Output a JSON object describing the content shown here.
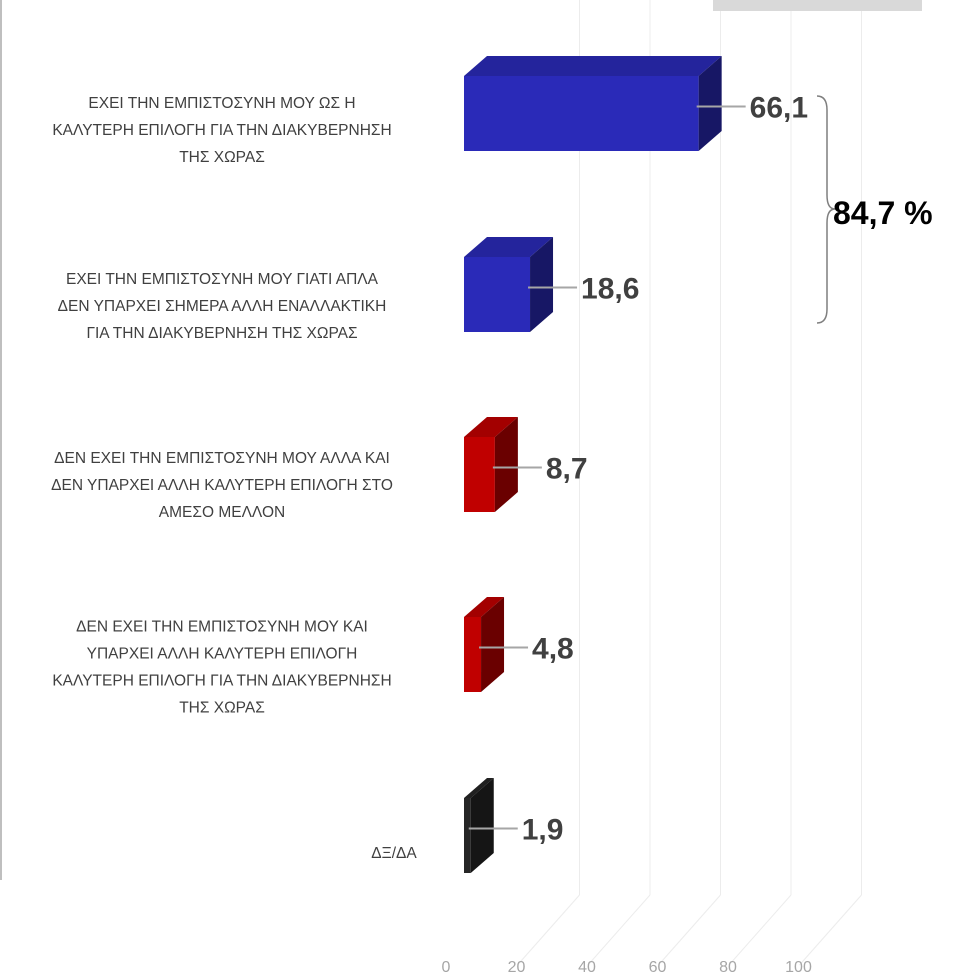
{
  "chart_data": {
    "type": "bar",
    "orientation": "horizontal",
    "style": "3d",
    "categories": [
      [
        "ΕΧΕΙ ΤΗΝ ΕΜΠΙΣΤΟΣΥΝΗ ΜΟΥ ΩΣ Η",
        "ΚΑΛΥΤΕΡΗ ΕΠΙΛΟΓΗ ΓΙΑ ΤΗΝ ΔΙΑΚΥΒΕΡΝΗΣΗ",
        "ΤΗΣ ΧΩΡΑΣ"
      ],
      [
        "ΕΧΕΙ ΤΗΝ ΕΜΠΙΣΤΟΣΥΝΗ ΜΟΥ ΓΙΑΤΙ ΑΠΛΑ",
        "ΔΕΝ ΥΠΑΡΧΕΙ ΣΗΜΕΡΑ ΑΛΛΗ ΕΝΑΛΛΑΚΤΙΚΗ",
        "ΓΙΑ ΤΗΝ ΔΙΑΚΥΒΕΡΝΗΣΗ ΤΗΣ ΧΩΡΑΣ"
      ],
      [
        "ΔΕΝ ΕΧΕΙ ΤΗΝ ΕΜΠΙΣΤΟΣΥΝΗ ΜΟΥ ΑΛΛΑ ΚΑΙ",
        "ΔΕΝ ΥΠΑΡΧΕΙ ΑΛΛΗ ΚΑΛΥΤΕΡΗ ΕΠΙΛΟΓΗ ΣΤΟ",
        "ΑΜΕΣΟ ΜΕΛΛΟΝ"
      ],
      [
        "ΔΕΝ ΕΧΕΙ ΤΗΝ ΕΜΠΙΣΤΟΣΥΝΗ ΜΟΥ ΚΑΙ",
        "ΥΠΑΡΧΕΙ ΑΛΛΗ ΚΑΛΥΤΕΡΗ ΕΠΙΛΟΓΗ",
        "ΚΑΛΥΤΕΡΗ ΕΠΙΛΟΓΗ ΓΙΑ ΤΗΝ ΔΙΑΚΥΒΕΡΝΗΣΗ",
        "ΤΗΣ ΧΩΡΑΣ"
      ],
      [
        "ΔΞ/ΔΑ"
      ]
    ],
    "values": [
      66.1,
      18.6,
      8.7,
      4.8,
      1.9
    ],
    "value_labels": [
      "66,1",
      "18,6",
      "8,7",
      "4,8",
      "1,9"
    ],
    "colors": [
      "#2a2ab8",
      "#2a2ab8",
      "#c00000",
      "#c00000",
      "#262626"
    ],
    "x_ticks": [
      0,
      20,
      40,
      60,
      80,
      100
    ],
    "xlim": [
      0,
      100
    ],
    "grid": true,
    "bracket_total_label": "84,7 %",
    "bracket_spans": [
      0,
      1
    ]
  }
}
